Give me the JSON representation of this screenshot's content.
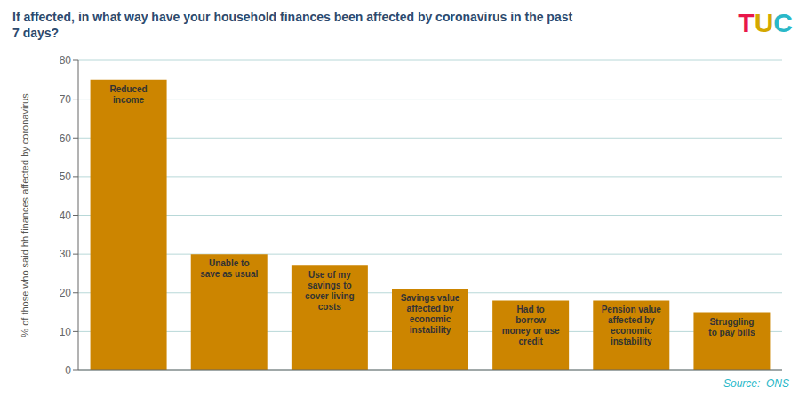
{
  "chart_data": {
    "type": "bar",
    "title": "If affected, in what way have your household finances been affected by coronavirus in the past\n7 days?",
    "ylabel": "% of those who said hh finances affected by coronavirus",
    "annotations": [
      "TUC",
      "Source:  ONS"
    ],
    "categories": [
      "Reduced\nincome",
      "Unable to\nsave as usual",
      "Use of my\nsavings to\ncover living\ncosts",
      "Savings value\naffected by\neconomic\ninstability",
      "Had to\nborrow\nmoney or use\ncredit",
      "Pension value\naffected by\neconomic\ninstability",
      "Struggling\nto pay bills"
    ],
    "values": [
      75,
      30,
      27,
      21,
      18,
      18,
      15
    ],
    "color": "#CC8500",
    "ylim": [
      0,
      80
    ],
    "yticks": [
      0,
      10,
      20,
      30,
      40,
      50,
      60,
      70,
      80
    ],
    "grid": true,
    "tick_labels": "y",
    "data_labels": false
  }
}
